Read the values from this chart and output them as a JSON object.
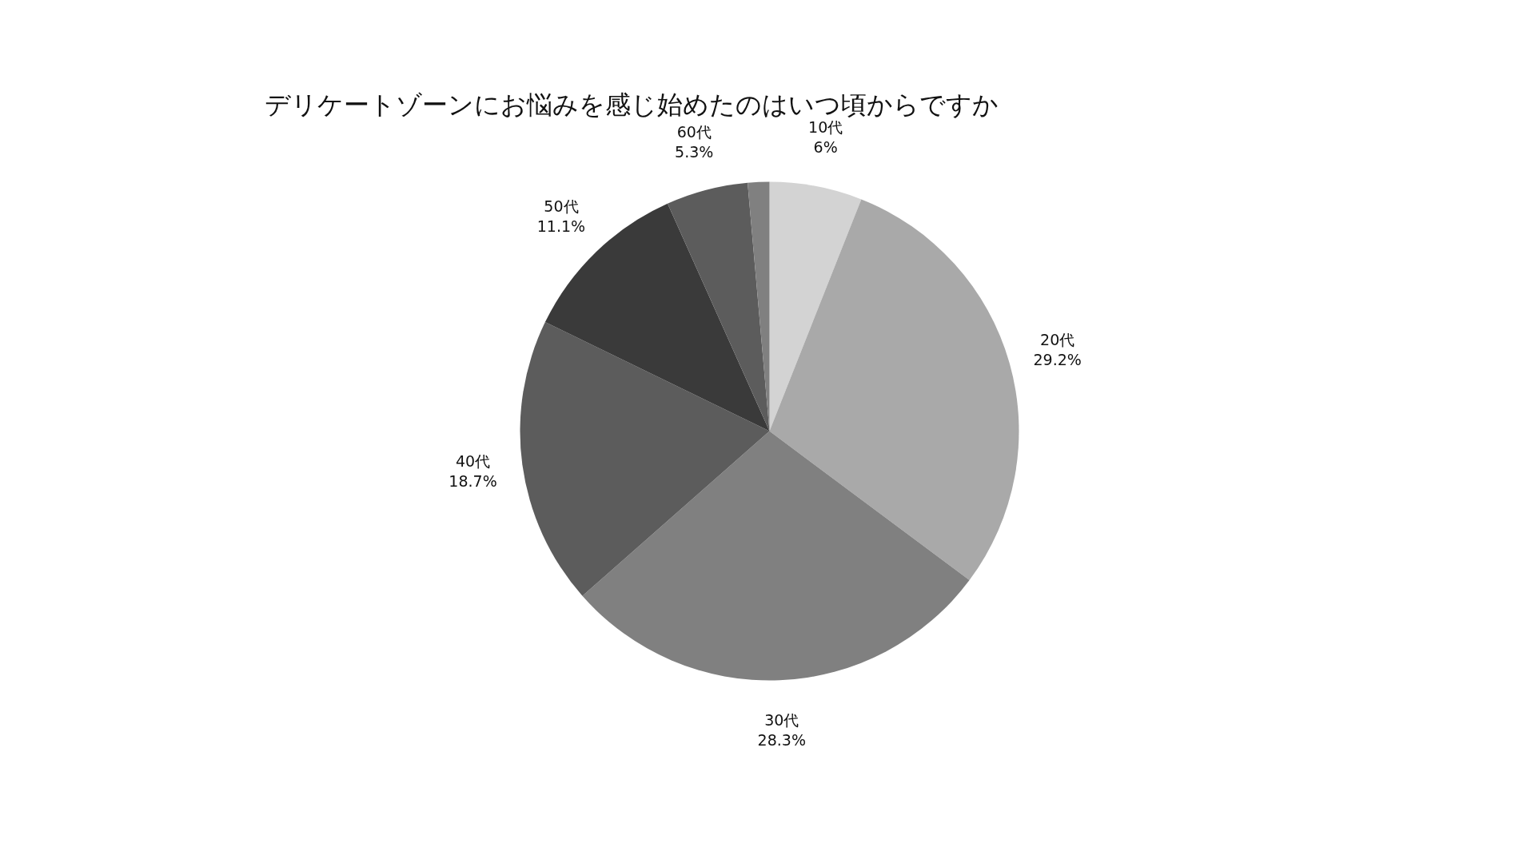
{
  "chart_data": {
    "type": "pie",
    "title": "デリケートゾーンにお悩みを感じ始めたのはいつ頃からですか",
    "categories": [
      "10代",
      "20代",
      "30代",
      "40代",
      "50代",
      "60代",
      null
    ],
    "values": [
      6,
      29.2,
      28.3,
      18.7,
      11.1,
      5.3,
      1.4
    ],
    "value_labels": [
      "6%",
      "29.2%",
      "28.3%",
      "18.7%",
      "11.1%",
      "5.3%",
      null
    ],
    "colors": [
      "#d3d3d3",
      "#a9a9a9",
      "#808080",
      "#5c5c5c",
      "#3a3a3a",
      "#5c5c5c",
      "#808080"
    ]
  }
}
